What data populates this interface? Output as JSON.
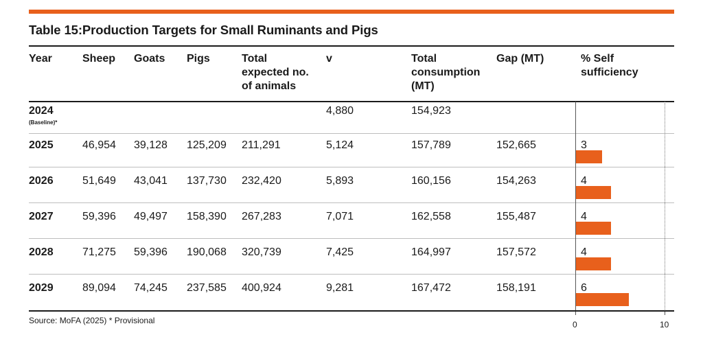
{
  "title": "Table 15:Production Targets for Small Ruminants and Pigs",
  "headers": {
    "year": "Year",
    "sheep": "Sheep",
    "goats": "Goats",
    "pigs": "Pigs",
    "total_line1": "Total",
    "total_line2": "expected no.",
    "total_line3": "of animals",
    "v": "v",
    "cons_line1": "Total",
    "cons_line2": "consumption",
    "cons_line3": "(MT)",
    "gap": "Gap (MT)",
    "self_line1": "% Self",
    "self_line2": "sufficiency"
  },
  "rows": [
    {
      "year": "2024",
      "note": "(Baseline)*",
      "sheep": "",
      "goats": "",
      "pigs": "",
      "total": "",
      "v": "4,880",
      "consumption": "154,923",
      "gap": "",
      "self": "",
      "self_value": null
    },
    {
      "year": "2025",
      "note": "",
      "sheep": "46,954",
      "goats": "39,128",
      "pigs": "125,209",
      "total": "211,291",
      "v": "5,124",
      "consumption": "157,789",
      "gap": "152,665",
      "self": "3",
      "self_value": 3
    },
    {
      "year": "2026",
      "note": "",
      "sheep": "51,649",
      "goats": "43,041",
      "pigs": "137,730",
      "total": "232,420",
      "v": "5,893",
      "consumption": "160,156",
      "gap": "154,263",
      "self": "4",
      "self_value": 4
    },
    {
      "year": "2027",
      "note": "",
      "sheep": "59,396",
      "goats": "49,497",
      "pigs": "158,390",
      "total": "267,283",
      "v": "7,071",
      "consumption": "162,558",
      "gap": "155,487",
      "self": "4",
      "self_value": 4
    },
    {
      "year": "2028",
      "note": "",
      "sheep": "71,275",
      "goats": "59,396",
      "pigs": "190,068",
      "total": "320,739",
      "v": "7,425",
      "consumption": "164,997",
      "gap": "157,572",
      "self": "4",
      "self_value": 4
    },
    {
      "year": "2029",
      "note": "",
      "sheep": "89,094",
      "goats": "74,245",
      "pigs": "237,585",
      "total": "400,924",
      "v": "9,281",
      "consumption": "167,472",
      "gap": "158,191",
      "self": "6",
      "self_value": 6
    }
  ],
  "axis": {
    "min": 0,
    "max": 10,
    "min_label": "0",
    "max_label": "10"
  },
  "source": "Source: MoFA (2025) * Provisional",
  "colors": {
    "accent": "#e8601c"
  }
}
